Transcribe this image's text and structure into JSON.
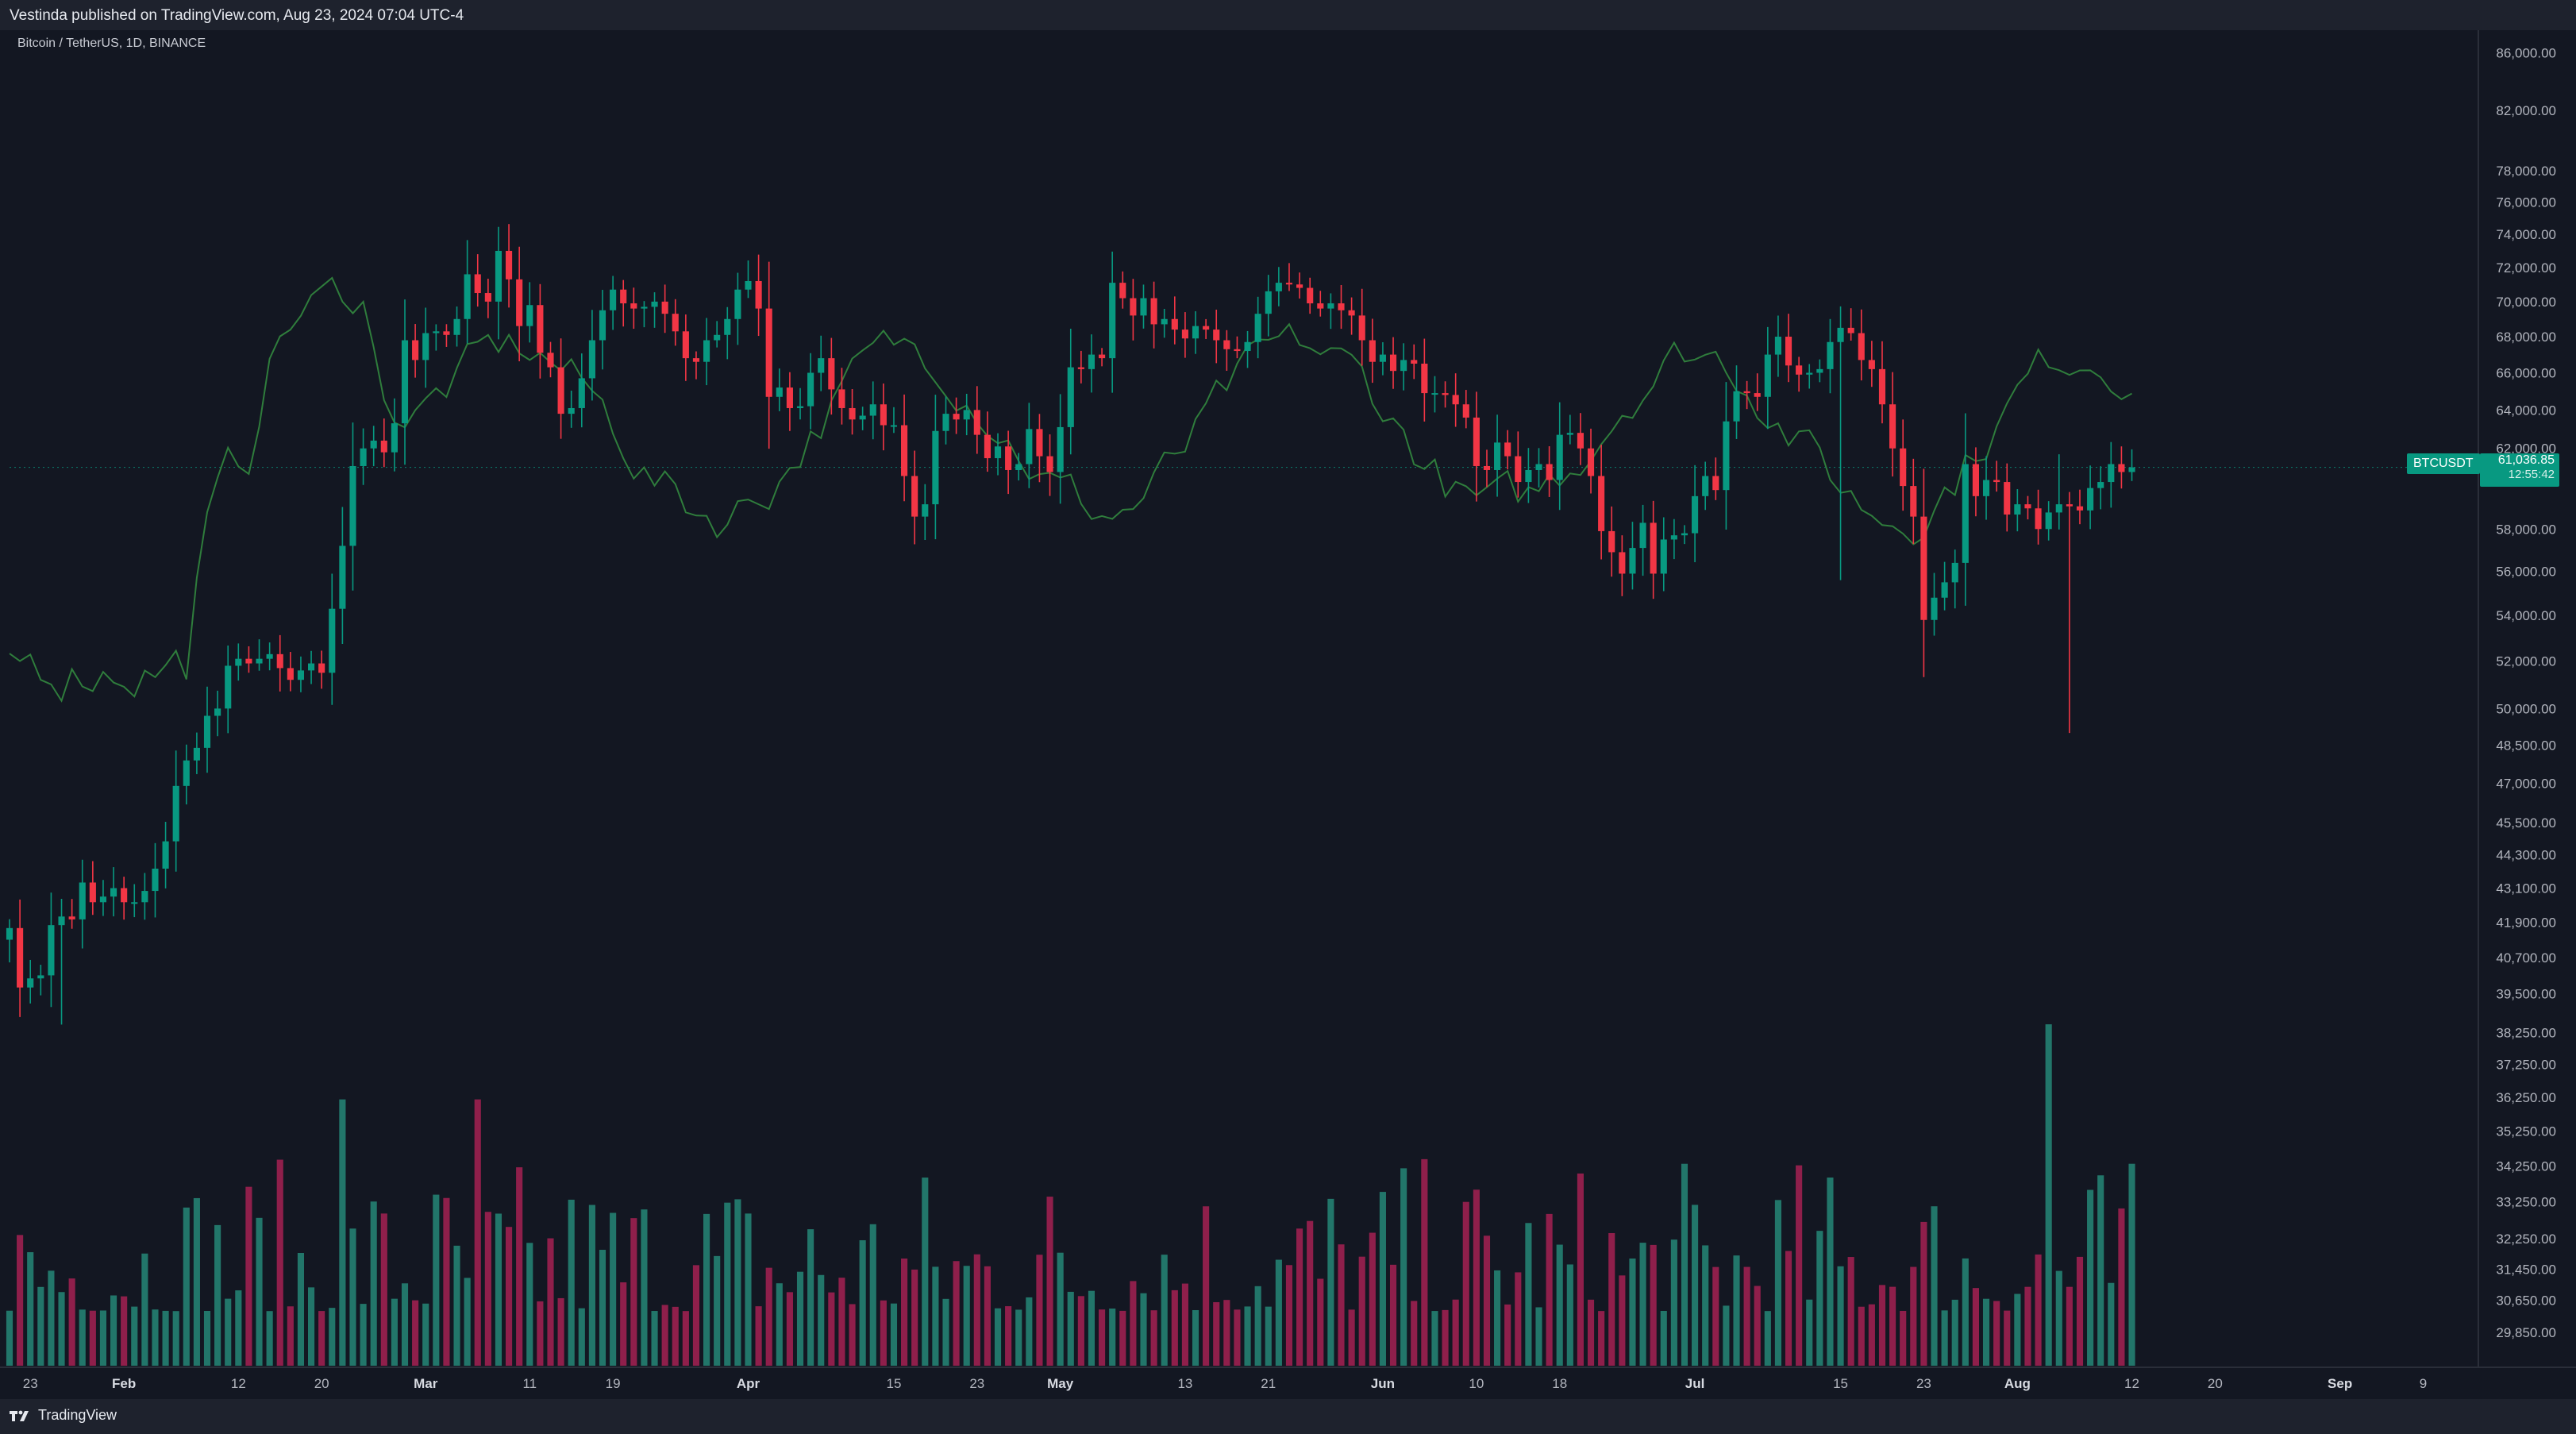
{
  "header": {
    "text": "Vestinda published on TradingView.com, Aug 23, 2024 07:04 UTC-4"
  },
  "chart_title": "Bitcoin / TetherUS, 1D, BINANCE",
  "footer": {
    "logo_text": "TradingView"
  },
  "last_price": {
    "symbol": "BTCUSDT",
    "price": "61,036.85",
    "countdown": "12:55:42"
  },
  "colors": {
    "up": "#089981",
    "down": "#f23645",
    "volume_up": "#22766a",
    "volume_down": "#8f1f4b",
    "line": "#2f7d3c",
    "background": "#131722"
  },
  "chart_data": {
    "type": "candlestick",
    "title": "Bitcoin / TetherUS, 1D, BINANCE",
    "y_scale": "log",
    "ylim": [
      29000,
      87500
    ],
    "y_ticks": [
      "86,000.00",
      "82,000.00",
      "78,000.00",
      "76,000.00",
      "74,000.00",
      "72,000.00",
      "70,000.00",
      "68,000.00",
      "66,000.00",
      "64,000.00",
      "62,000.00",
      "58,000.00",
      "56,000.00",
      "54,000.00",
      "52,000.00",
      "50,000.00",
      "48,500.00",
      "47,000.00",
      "45,500.00",
      "44,300.00",
      "43,100.00",
      "41,900.00",
      "40,700.00",
      "39,500.00",
      "38,250.00",
      "37,250.00",
      "36,250.00",
      "35,250.00",
      "34,250.00",
      "33,250.00",
      "32,250.00",
      "31,450.00",
      "30,650.00",
      "29,850.00"
    ],
    "x_ticks": [
      {
        "label": "23",
        "date": "2024-01-23"
      },
      {
        "label": "Feb",
        "date": "2024-02-01",
        "month": true
      },
      {
        "label": "12",
        "date": "2024-02-12"
      },
      {
        "label": "20",
        "date": "2024-02-20"
      },
      {
        "label": "Mar",
        "date": "2024-03-01",
        "month": true
      },
      {
        "label": "11",
        "date": "2024-03-11"
      },
      {
        "label": "19",
        "date": "2024-03-19"
      },
      {
        "label": "Apr",
        "date": "2024-04-01",
        "month": true
      },
      {
        "label": "15",
        "date": "2024-04-15"
      },
      {
        "label": "23",
        "date": "2024-04-23"
      },
      {
        "label": "May",
        "date": "2024-05-01",
        "month": true
      },
      {
        "label": "13",
        "date": "2024-05-13"
      },
      {
        "label": "21",
        "date": "2024-05-21"
      },
      {
        "label": "Jun",
        "date": "2024-06-01",
        "month": true
      },
      {
        "label": "10",
        "date": "2024-06-10"
      },
      {
        "label": "18",
        "date": "2024-06-18"
      },
      {
        "label": "Jul",
        "date": "2024-07-01",
        "month": true
      },
      {
        "label": "15",
        "date": "2024-07-15"
      },
      {
        "label": "23",
        "date": "2024-07-23"
      },
      {
        "label": "Aug",
        "date": "2024-08-01",
        "month": true
      },
      {
        "label": "12",
        "date": "2024-08-12"
      },
      {
        "label": "20",
        "date": "2024-08-20"
      },
      {
        "label": "Sep",
        "date": "2024-09-01",
        "month": true
      },
      {
        "label": "9",
        "date": "2024-09-09"
      }
    ],
    "x_range": [
      "2024-01-21",
      "2024-09-14"
    ],
    "last_price": 61036.85,
    "closes": [
      41700,
      39700,
      40000,
      40100,
      41800,
      42100,
      42000,
      43300,
      42600,
      42800,
      43100,
      42600,
      42600,
      43000,
      43800,
      44800,
      46900,
      47900,
      48400,
      49700,
      50000,
      51800,
      52100,
      51900,
      52100,
      52300,
      51700,
      51200,
      51600,
      51900,
      51500,
      54300,
      57200,
      61100,
      62000,
      62400,
      61800,
      63300,
      67800,
      66700,
      68200,
      68300,
      68100,
      69000,
      71600,
      70500,
      70000,
      73000,
      71300,
      68600,
      69800,
      67100,
      66300,
      63800,
      64100,
      65700,
      67800,
      69500,
      70700,
      69900,
      69600,
      69700,
      70000,
      69300,
      68300,
      66800,
      66600,
      67800,
      68100,
      69000,
      70700,
      71200,
      69600,
      64700,
      65200,
      64100,
      64200,
      66000,
      66800,
      65100,
      64100,
      63500,
      63700,
      64300,
      63200,
      63200,
      60600,
      58600,
      59200,
      62900,
      63800,
      63500,
      64000,
      62700,
      61500,
      62100,
      60900,
      61200,
      63000,
      61600,
      60800,
      63100,
      66300,
      66200,
      67000,
      66800,
      71100,
      70200,
      69200,
      70200,
      68700,
      69000,
      68400,
      67900,
      68600,
      68400,
      67800,
      67300,
      67200,
      67700,
      69300,
      70600,
      71100,
      71000,
      70800,
      69900,
      69600,
      69900,
      69500,
      69200,
      67800,
      66600,
      67000,
      66100,
      66700,
      66500,
      64900,
      64900,
      64800,
      64300,
      63600,
      61100,
      60900,
      62300,
      61600,
      60300,
      60900,
      61200,
      60400,
      62700,
      62800,
      62000,
      60600,
      57900,
      56900,
      55900,
      57100,
      58300,
      55900,
      57500,
      57700,
      57800,
      59600,
      60600,
      59900,
      63400,
      65000,
      64900,
      64700,
      67000,
      68000,
      66400,
      65900,
      66000,
      66200,
      67700,
      68500,
      68200,
      66700,
      66200,
      64300,
      62000,
      60100,
      58600,
      53800,
      54800,
      55500,
      56400,
      61200,
      59600,
      60400,
      60300,
      58700,
      59200,
      59000,
      58000,
      58800,
      59200,
      59100,
      58900,
      60000,
      60300,
      61200,
      60800,
      61036
    ]
  }
}
